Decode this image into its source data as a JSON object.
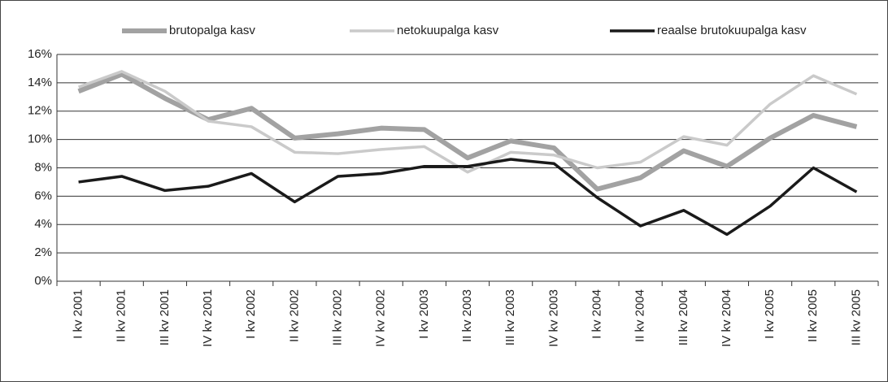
{
  "chart_data": {
    "type": "line",
    "categories": [
      "I kv 2001",
      "II kv 2001",
      "III kv 2001",
      "IV kv 2001",
      "I kv 2002",
      "II kv 2002",
      "III kv 2002",
      "IV kv 2002",
      "I kv 2003",
      "II kv 2003",
      "III kv 2003",
      "IV kv 2003",
      "I kv 2004",
      "II kv 2004",
      "III kv 2004",
      "IV kv 2004",
      "I kv 2005",
      "II kv 2005",
      "III kv 2005"
    ],
    "series": [
      {
        "name": "brutopalga kasv",
        "color": "#a2a2a2",
        "values": [
          13.4,
          14.6,
          12.9,
          11.4,
          12.2,
          10.1,
          10.4,
          10.8,
          10.7,
          8.7,
          9.9,
          9.4,
          6.5,
          7.3,
          9.2,
          8.1,
          10.1,
          11.7,
          10.9
        ]
      },
      {
        "name": "netokuupalga kasv",
        "color": "#cacaca",
        "values": [
          13.7,
          14.8,
          13.4,
          11.3,
          10.9,
          9.1,
          9.0,
          9.3,
          9.5,
          7.7,
          9.1,
          8.9,
          8.0,
          8.4,
          10.2,
          9.6,
          12.5,
          14.5,
          13.2
        ]
      },
      {
        "name": "reaalse brutokuupalga kasv",
        "color": "#1a1a1a",
        "values": [
          7.0,
          7.4,
          6.4,
          6.7,
          7.6,
          5.6,
          7.4,
          7.6,
          8.1,
          8.1,
          8.6,
          8.3,
          5.9,
          3.9,
          5.0,
          3.3,
          5.3,
          8.0,
          6.3
        ]
      }
    ],
    "ylim": [
      0,
      16
    ],
    "yticks": [
      {
        "value": 0,
        "label": "0%"
      },
      {
        "value": 2,
        "label": "2%"
      },
      {
        "value": 4,
        "label": "4%"
      },
      {
        "value": 6,
        "label": "6%"
      },
      {
        "value": 8,
        "label": "8%"
      },
      {
        "value": 10,
        "label": "10%"
      },
      {
        "value": 12,
        "label": "12%"
      },
      {
        "value": 14,
        "label": "14%"
      },
      {
        "value": 16,
        "label": "16%"
      }
    ],
    "grid": true,
    "legend": "top"
  }
}
